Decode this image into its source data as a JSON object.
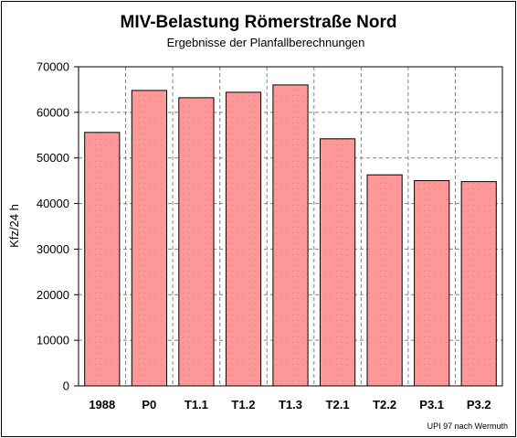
{
  "chart_data": {
    "type": "bar",
    "title": "MIV-Belastung Römerstraße Nord",
    "subtitle": "Ergebnisse der Planfallberechnungen",
    "xlabel": "",
    "ylabel": "Kfz/24 h",
    "categories": [
      "1988",
      "P0",
      "T1.1",
      "T1.2",
      "T1.3",
      "T2.1",
      "T2.2",
      "P3.1",
      "P3.2"
    ],
    "values": [
      55600,
      64800,
      63200,
      64400,
      66000,
      54200,
      46300,
      45000,
      44800
    ],
    "ylim": [
      0,
      70000
    ],
    "yticks": [
      "0",
      "10000",
      "20000",
      "30000",
      "40000",
      "50000",
      "60000",
      "70000"
    ],
    "grid": true,
    "source_note": "UPI 97 nach Wermuth",
    "colors": {
      "bar_fill": "#ff9999",
      "bar_stroke": "#000000",
      "grid": "#808080",
      "frame": "#000000"
    }
  }
}
